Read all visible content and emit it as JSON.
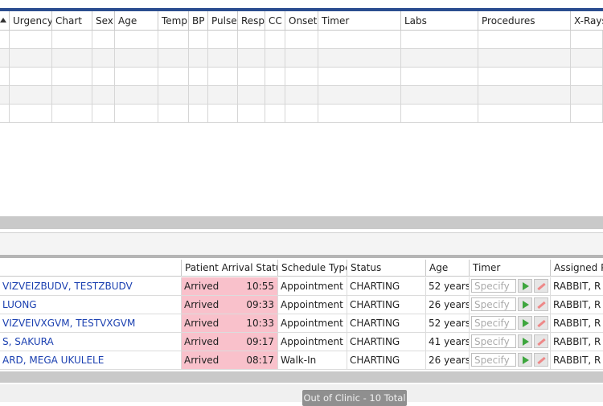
{
  "upper_grid": {
    "columns": [
      "Urgency",
      "Chart",
      "Sex",
      "Age",
      "Temp",
      "BP",
      "Pulse",
      "Resp",
      "CC",
      "Onset",
      "Timer",
      "Labs",
      "Procedures",
      "X-Rays"
    ]
  },
  "lower_grid": {
    "columns": [
      "Patient Arrival Status",
      "Schedule Type",
      "Status",
      "Age",
      "Timer",
      "Assigned P"
    ],
    "timer_placeholder": "Specify",
    "rows": [
      {
        "name": "VIZVEIZBUDV, TESTZBUDV",
        "arrival": "Arrived",
        "time": "10:55",
        "schedule": "Appointment",
        "status": "CHARTING",
        "age": "52 years",
        "assigned": "RABBIT, R [R"
      },
      {
        "name": " LUONG",
        "arrival": "Arrived",
        "time": "09:33",
        "schedule": "Appointment",
        "status": "CHARTING",
        "age": "26 years",
        "assigned": "RABBIT, R [R"
      },
      {
        "name": "VIZVEIVXGVM, TESTVXGVM",
        "arrival": "Arrived",
        "time": "10:33",
        "schedule": "Appointment",
        "status": "CHARTING",
        "age": "52 years",
        "assigned": "RABBIT, R [R"
      },
      {
        "name": "S, SAKURA",
        "arrival": "Arrived",
        "time": "09:17",
        "schedule": "Appointment",
        "status": "CHARTING",
        "age": "41 years",
        "assigned": "RABBIT, R [R"
      },
      {
        "name": "ARD, MEGA UKULELE",
        "arrival": "Arrived",
        "time": "08:17",
        "schedule": "Walk-In",
        "status": "CHARTING",
        "age": "26 years",
        "assigned": "RABBIT, R [R"
      }
    ]
  },
  "out_of_clinic_tab": "Out of Clinic - 10 Total"
}
